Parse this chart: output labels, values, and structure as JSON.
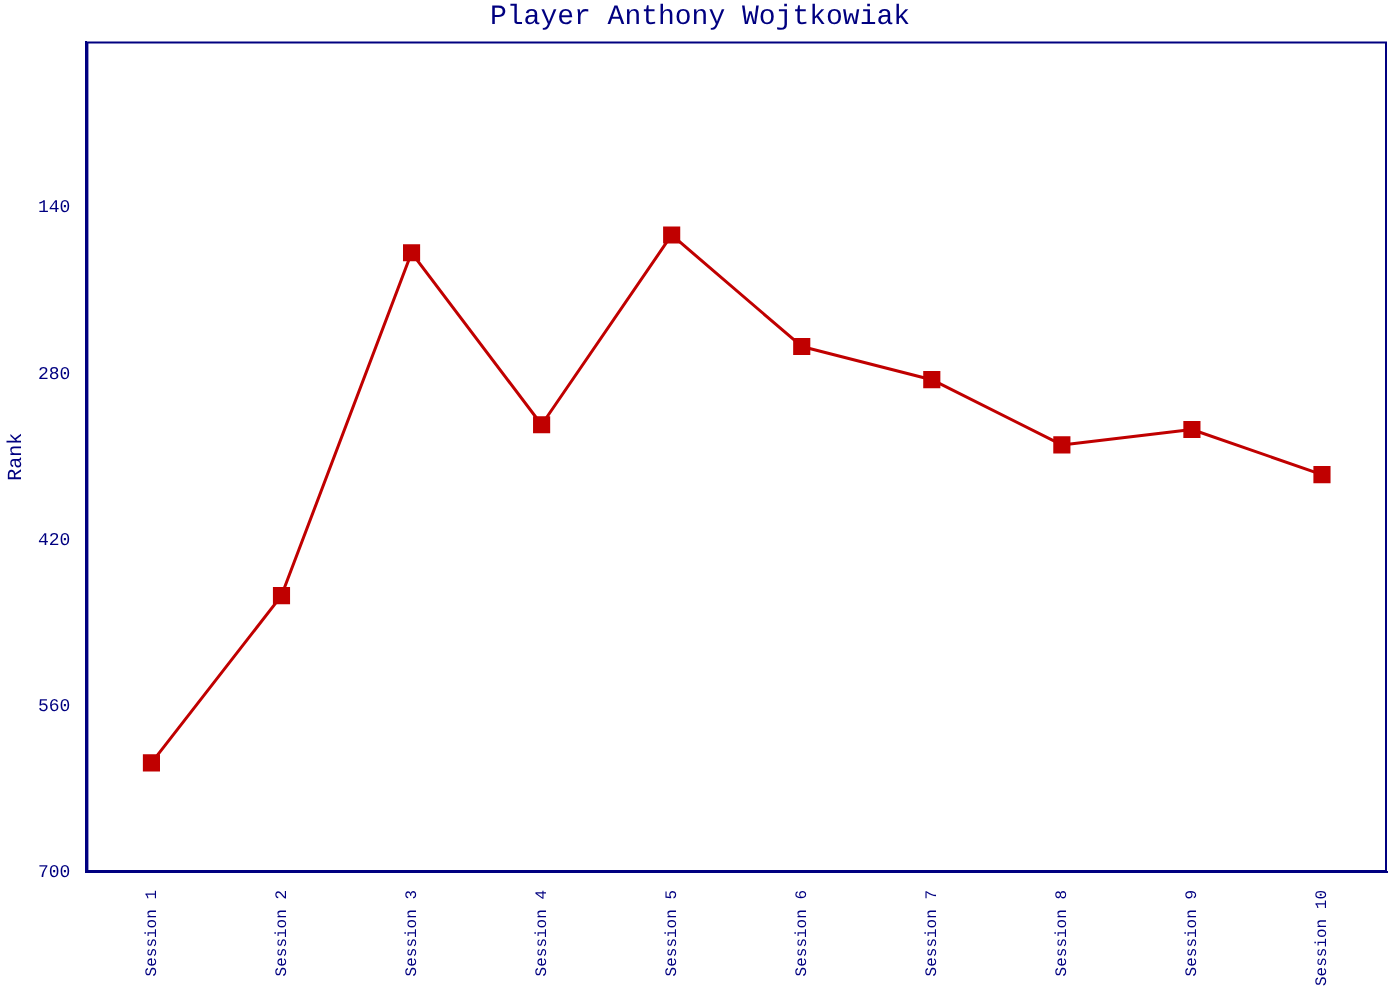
{
  "chart_data": {
    "type": "line",
    "title": "Player Anthony Wojtkowiak",
    "ylabel": "Rank",
    "categories": [
      "Session 1",
      "Session 2",
      "Session 3",
      "Session 4",
      "Session 5",
      "Session 6",
      "Session 7",
      "Session 8",
      "Session 9",
      "Session 10"
    ],
    "series": [
      {
        "color": "#c00000",
        "values": [
          608,
          467,
          178,
          323,
          163,
          257,
          285,
          340,
          327,
          365
        ]
      }
    ],
    "ylim": [
      700,
      0
    ],
    "yticks": [
      140,
      280,
      420,
      560,
      700
    ],
    "grid": false,
    "legend": false,
    "marker": "square",
    "line_style": "solid"
  }
}
